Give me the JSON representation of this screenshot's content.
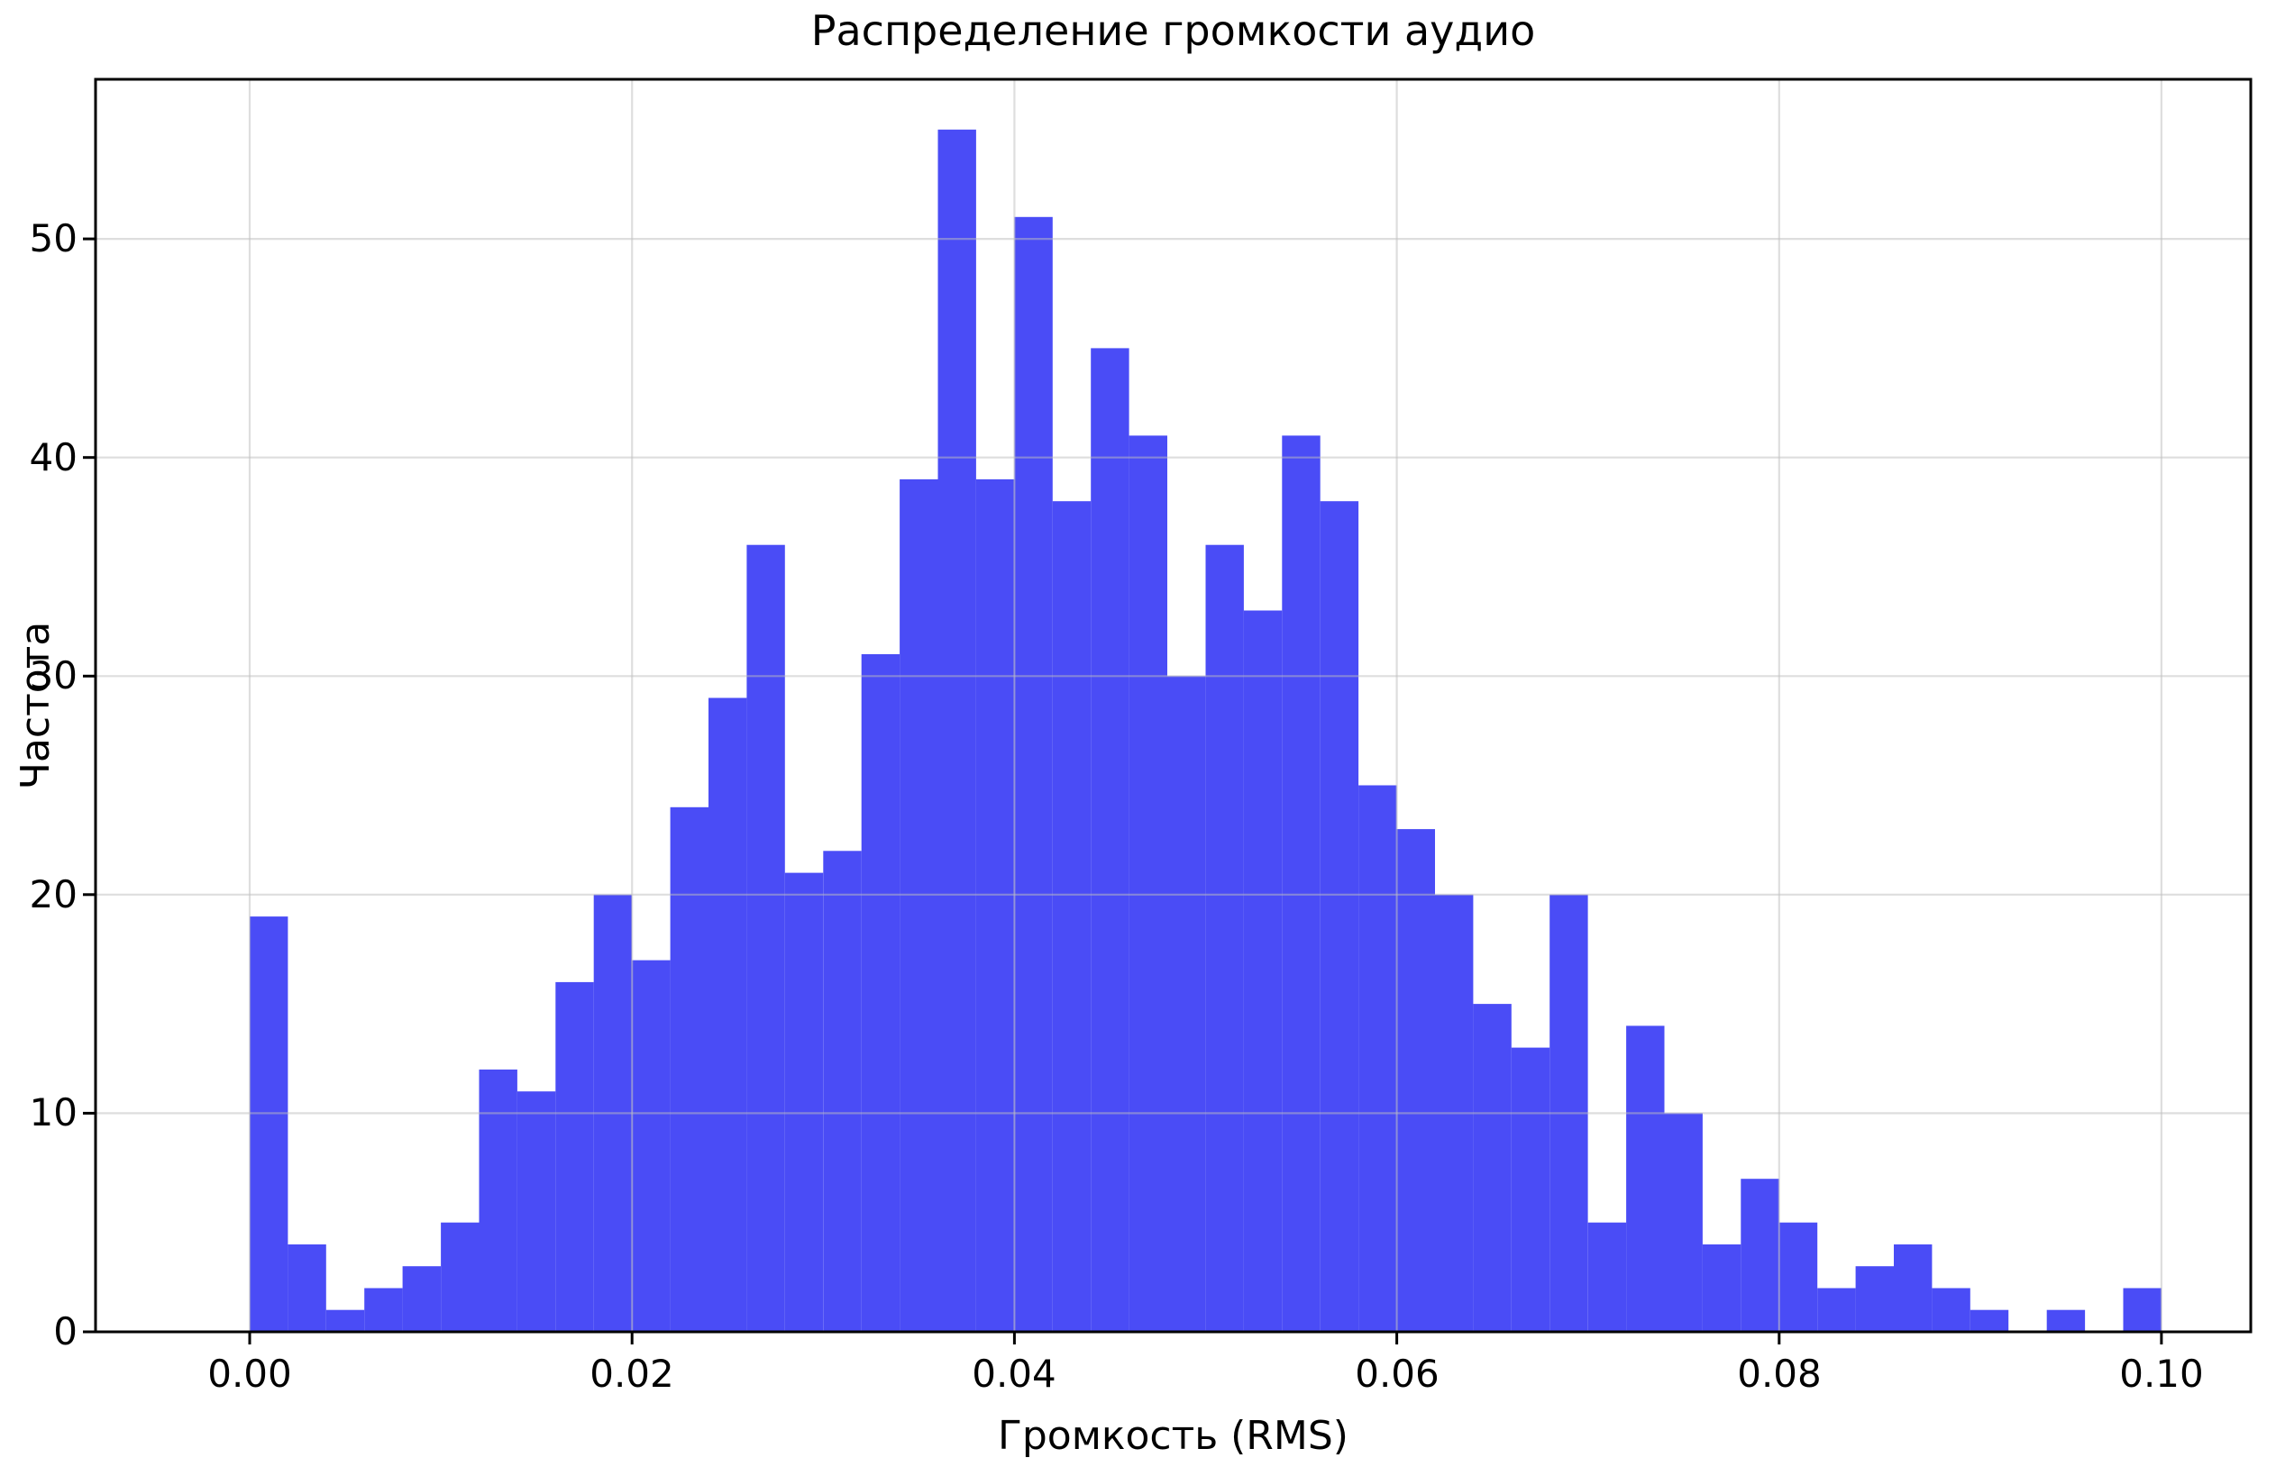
{
  "chart_data": {
    "type": "bar",
    "subtype": "histogram",
    "title": "Распределение громкости аудио",
    "xlabel": "Громкость (RMS)",
    "ylabel": "Частота",
    "bin_start": 0.0,
    "bin_width": 0.002,
    "values": [
      19,
      4,
      1,
      2,
      3,
      5,
      12,
      11,
      16,
      20,
      17,
      24,
      29,
      36,
      21,
      22,
      31,
      39,
      55,
      39,
      51,
      38,
      45,
      41,
      30,
      36,
      33,
      41,
      38,
      25,
      23,
      20,
      15,
      13,
      20,
      5,
      14,
      10,
      4,
      7,
      5,
      2,
      3,
      4,
      2,
      1,
      0,
      1,
      0,
      2
    ],
    "x_tick_labels": [
      "0.00",
      "0.02",
      "0.04",
      "0.06",
      "0.08",
      "0.10"
    ],
    "x_tick_values": [
      0.0,
      0.02,
      0.04,
      0.06,
      0.08,
      0.1
    ],
    "y_tick_labels": [
      "0",
      "10",
      "20",
      "30",
      "40",
      "50"
    ],
    "y_tick_values": [
      0,
      10,
      20,
      30,
      40,
      50
    ],
    "xlim": [
      -0.00806,
      0.10467
    ],
    "ylim": [
      0,
      57.3
    ],
    "bar_color": "#4A4CF6",
    "grid": true,
    "grid_color_rgba": "rgba(190,190,190,0.5)",
    "spine_color": "#000000",
    "background_color": "#ffffff",
    "legend": null
  }
}
